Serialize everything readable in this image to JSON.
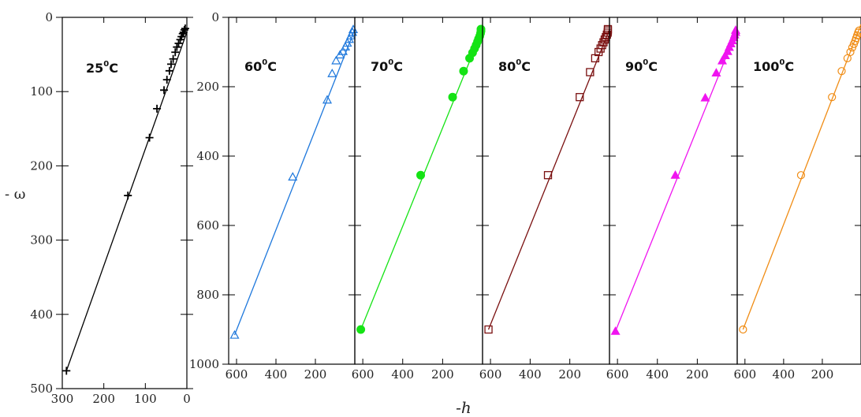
{
  "chart_data": [
    {
      "type": "scatter",
      "label_text": "25",
      "label_unit": "C",
      "label_degree": "0",
      "ylabel": "- ω",
      "xlabel": "",
      "xlim": [
        300,
        0
      ],
      "ylim": [
        0,
        500
      ],
      "xticks": [
        300,
        200,
        100,
        0
      ],
      "yticks": [
        0,
        100,
        200,
        300,
        400,
        500
      ],
      "color": "#000000",
      "marker": "plus",
      "fit": [
        [
          290,
          476
        ],
        [
          0,
          20
        ]
      ],
      "series": [
        {
          "x": [
            290,
            142,
            90,
            72,
            55,
            48,
            42,
            38,
            33,
            28,
            24,
            20,
            16,
            13,
            10,
            8,
            6,
            4
          ],
          "y": [
            476,
            240,
            162,
            123,
            98,
            84,
            72,
            63,
            56,
            47,
            40,
            35,
            30,
            26,
            22,
            20,
            17,
            15
          ]
        }
      ]
    },
    {
      "type": "scatter",
      "label_text": "60",
      "label_unit": "C",
      "label_degree": "0",
      "xlim": [
        640,
        0
      ],
      "ylim": [
        0,
        1000
      ],
      "xticks": [
        600,
        400,
        200
      ],
      "yticks": [
        0,
        200,
        400,
        600,
        800,
        1000
      ],
      "color": "#1e78dc",
      "marker": "triangle-open",
      "fit": [
        [
          610,
          916
        ],
        [
          0,
          35
        ]
      ],
      "series": [
        {
          "x": [
            610,
            315,
            140,
            115,
            95,
            75,
            60,
            48,
            38,
            28,
            20,
            12,
            6
          ],
          "y": [
            916,
            460,
            238,
            162,
            125,
            108,
            98,
            85,
            74,
            63,
            53,
            43,
            35
          ]
        }
      ]
    },
    {
      "type": "scatter",
      "label_text": "70",
      "label_unit": "C",
      "label_degree": "0",
      "xlim": [
        640,
        0
      ],
      "ylim": [
        0,
        1000
      ],
      "xticks": [
        600,
        400,
        200
      ],
      "color": "#14e314",
      "marker": "circle-filled",
      "fit": [
        [
          610,
          900
        ],
        [
          0,
          35
        ]
      ],
      "series": [
        {
          "x": [
            610,
            310,
            150,
            95,
            65,
            50,
            40,
            32,
            25,
            20,
            14,
            10,
            6,
            3
          ],
          "y": [
            900,
            455,
            230,
            155,
            118,
            102,
            90,
            80,
            70,
            62,
            54,
            46,
            40,
            34
          ]
        }
      ]
    },
    {
      "type": "scatter",
      "label_text": "80",
      "label_unit": "C",
      "label_degree": "0",
      "xlim": [
        640,
        0
      ],
      "ylim": [
        0,
        1000
      ],
      "xticks": [
        600,
        400,
        200
      ],
      "color": "#7a1010",
      "marker": "square-open",
      "fit": [
        [
          610,
          900
        ],
        [
          0,
          35
        ]
      ],
      "series": [
        {
          "x": [
            610,
            310,
            150,
            98,
            72,
            55,
            45,
            37,
            30,
            24,
            18,
            13,
            9,
            5,
            2
          ],
          "y": [
            900,
            455,
            230,
            158,
            118,
            100,
            90,
            80,
            72,
            64,
            57,
            50,
            44,
            38,
            34
          ]
        }
      ]
    },
    {
      "type": "scatter",
      "label_text": "90",
      "label_unit": "C",
      "label_degree": "0",
      "xlim": [
        640,
        0
      ],
      "ylim": [
        0,
        1000
      ],
      "xticks": [
        600,
        400,
        200
      ],
      "color": "#f014f0",
      "marker": "triangle-filled",
      "fit": [
        [
          610,
          905
        ],
        [
          0,
          35
        ]
      ],
      "series": [
        {
          "x": [
            610,
            310,
            160,
            105,
            75,
            60,
            48,
            40,
            32,
            25,
            18,
            13,
            8,
            4
          ],
          "y": [
            905,
            455,
            232,
            160,
            125,
            110,
            98,
            86,
            76,
            67,
            58,
            50,
            43,
            37
          ]
        }
      ]
    },
    {
      "type": "scatter",
      "label_text": "100",
      "label_unit": "C",
      "label_degree": "0",
      "xlim": [
        640,
        0
      ],
      "ylim": [
        0,
        1000
      ],
      "xticks": [
        600,
        400,
        200
      ],
      "color": "#f08c14",
      "marker": "circle-open",
      "fit": [
        [
          610,
          900
        ],
        [
          0,
          20
        ]
      ],
      "series": [
        {
          "x": [
            610,
            310,
            150,
            100,
            70,
            55,
            45,
            37,
            30,
            25,
            20,
            15,
            10
          ],
          "y": [
            900,
            455,
            230,
            155,
            118,
            100,
            87,
            77,
            68,
            60,
            52,
            44,
            38
          ]
        }
      ]
    }
  ],
  "shared_xlabel": "-h"
}
